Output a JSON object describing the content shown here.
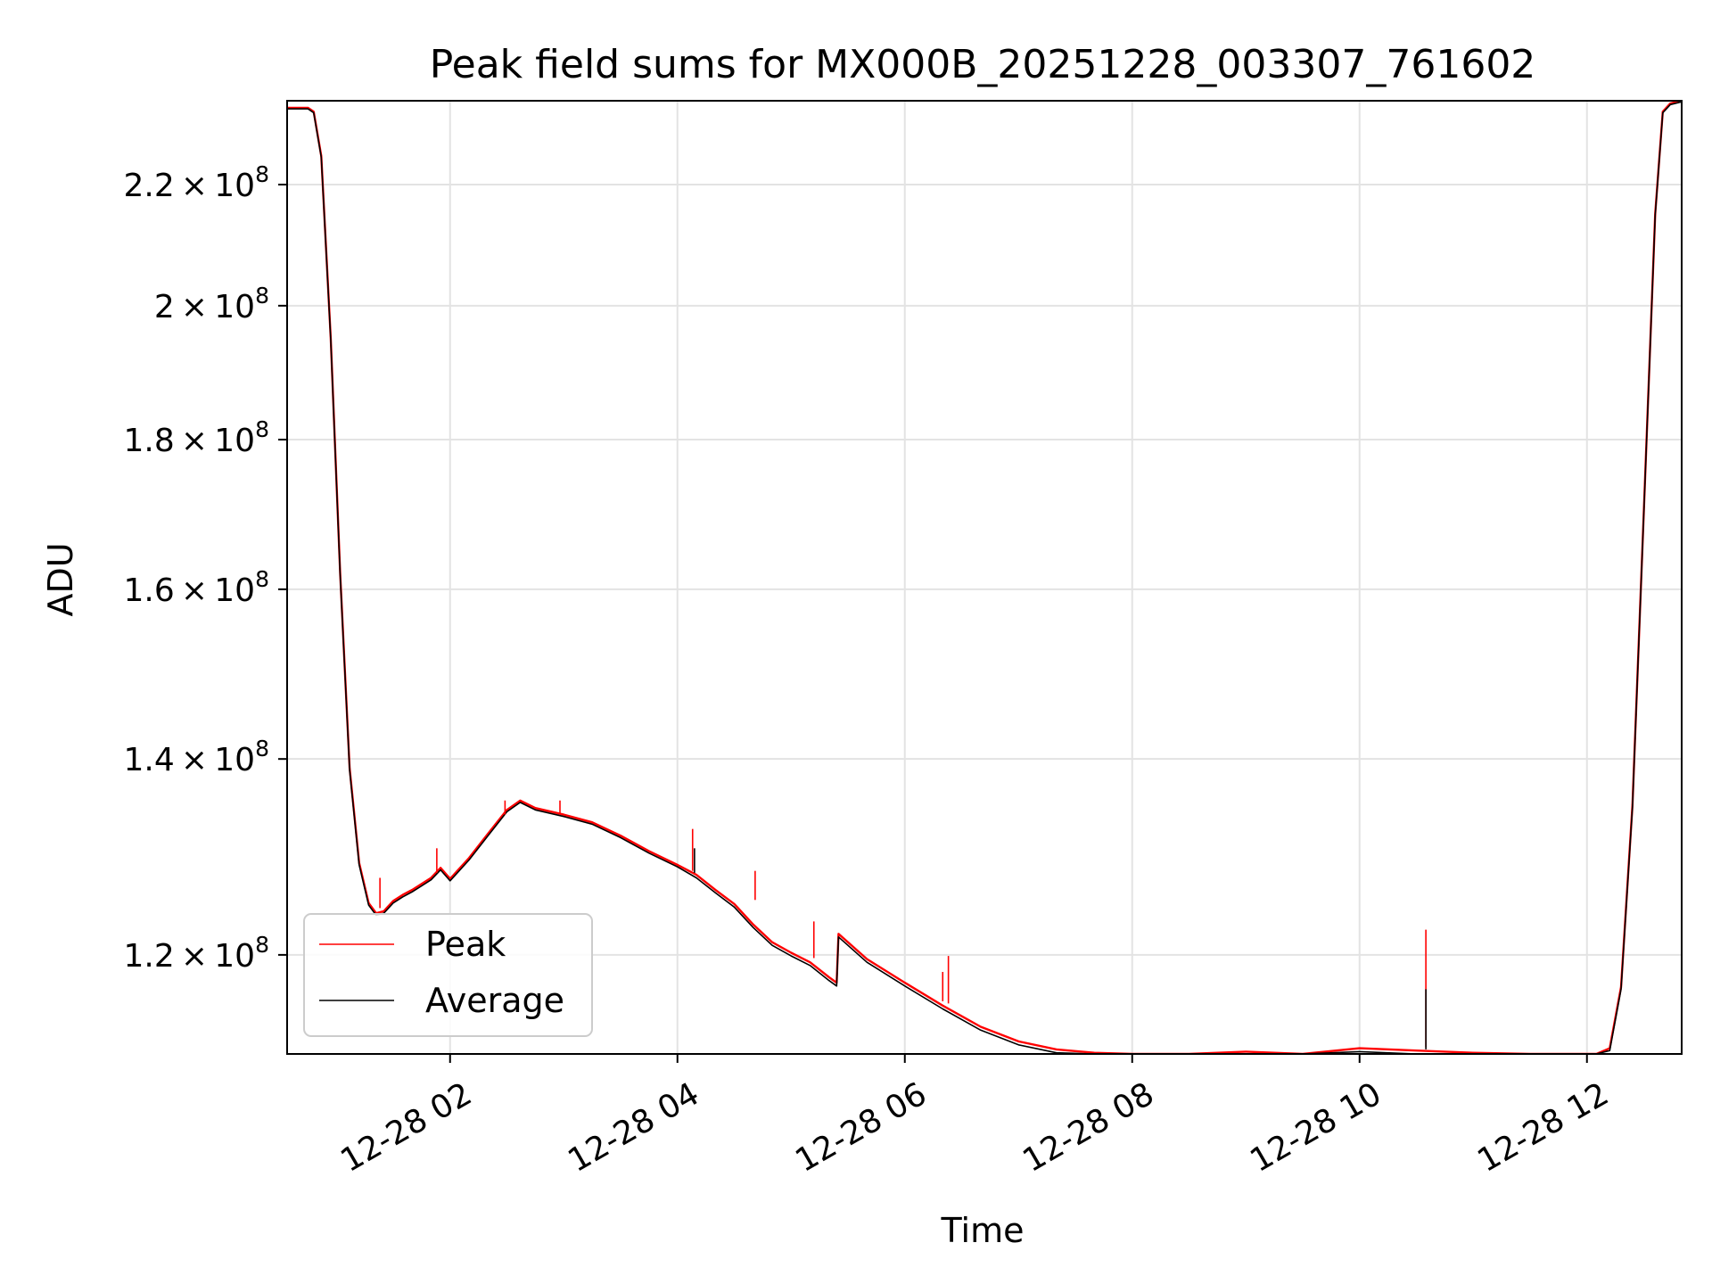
{
  "chart_data": {
    "type": "line",
    "title": "Peak field sums for MX000B_20251228_003307_761602",
    "xlabel": "Time",
    "ylabel": "ADU",
    "x_axis_type": "datetime",
    "xlim": [
      "2025-12-28 00:34",
      "2025-12-28 12:50"
    ],
    "ylim": [
      111000000,
      235000000
    ],
    "y_scale": "log",
    "grid": true,
    "legend_position": "lower-left",
    "x_ticks": [
      {
        "value": "2025-12-28 02:00",
        "label": "12-28 02"
      },
      {
        "value": "2025-12-28 04:00",
        "label": "12-28 04"
      },
      {
        "value": "2025-12-28 06:00",
        "label": "12-28 06"
      },
      {
        "value": "2025-12-28 08:00",
        "label": "12-28 08"
      },
      {
        "value": "2025-12-28 10:00",
        "label": "12-28 10"
      },
      {
        "value": "2025-12-28 12:00",
        "label": "12-28 12"
      }
    ],
    "y_ticks": [
      {
        "value": 120000000,
        "mantissa": "1.2",
        "exp": "8"
      },
      {
        "value": 140000000,
        "mantissa": "1.4",
        "exp": "8"
      },
      {
        "value": 160000000,
        "mantissa": "1.6",
        "exp": "8"
      },
      {
        "value": 180000000,
        "mantissa": "1.8",
        "exp": "8"
      },
      {
        "value": 200000000,
        "mantissa": "2",
        "exp": "8"
      },
      {
        "value": 220000000,
        "mantissa": "2.2",
        "exp": "8"
      }
    ],
    "series": [
      {
        "name": "Peak",
        "color": "#ff0000",
        "x": [
          "2025-12-28 00:34",
          "2025-12-28 00:45",
          "2025-12-28 00:48",
          "2025-12-28 00:52",
          "2025-12-28 00:57",
          "2025-12-28 01:02",
          "2025-12-28 01:07",
          "2025-12-28 01:12",
          "2025-12-28 01:17",
          "2025-12-28 01:21",
          "2025-12-28 01:25",
          "2025-12-28 01:30",
          "2025-12-28 01:35",
          "2025-12-28 01:40",
          "2025-12-28 01:45",
          "2025-12-28 01:50",
          "2025-12-28 01:55",
          "2025-12-28 02:00",
          "2025-12-28 02:10",
          "2025-12-28 02:20",
          "2025-12-28 02:30",
          "2025-12-28 02:37",
          "2025-12-28 02:45",
          "2025-12-28 03:00",
          "2025-12-28 03:15",
          "2025-12-28 03:30",
          "2025-12-28 03:45",
          "2025-12-28 04:00",
          "2025-12-28 04:10",
          "2025-12-28 04:20",
          "2025-12-28 04:30",
          "2025-12-28 04:40",
          "2025-12-28 04:50",
          "2025-12-28 05:00",
          "2025-12-28 05:10",
          "2025-12-28 05:20",
          "2025-12-28 05:24",
          "2025-12-28 05:25",
          "2025-12-28 05:40",
          "2025-12-28 06:00",
          "2025-12-28 06:20",
          "2025-12-28 06:40",
          "2025-12-28 07:00",
          "2025-12-28 07:20",
          "2025-12-28 07:40",
          "2025-12-28 08:00",
          "2025-12-28 08:30",
          "2025-12-28 09:00",
          "2025-12-28 09:30",
          "2025-12-28 10:00",
          "2025-12-28 10:30",
          "2025-12-28 11:00",
          "2025-12-28 11:30",
          "2025-12-28 11:50",
          "2025-12-28 12:00",
          "2025-12-28 12:05",
          "2025-12-28 12:12",
          "2025-12-28 12:18",
          "2025-12-28 12:24",
          "2025-12-28 12:30",
          "2025-12-28 12:36",
          "2025-12-28 12:40",
          "2025-12-28 12:44",
          "2025-12-28 12:50"
        ],
        "values": [
          233700000,
          233700000,
          233000000,
          225000000,
          195000000,
          162000000,
          139000000,
          129000000,
          125000000,
          124000000,
          124200000,
          125200000,
          125800000,
          126300000,
          126900000,
          127500000,
          128500000,
          127400000,
          129500000,
          132000000,
          134500000,
          135500000,
          134700000,
          134000000,
          133200000,
          131800000,
          130200000,
          128800000,
          127800000,
          126300000,
          124900000,
          122900000,
          121200000,
          120200000,
          119300000,
          117900000,
          117400000,
          122000000,
          119600000,
          117400000,
          115300000,
          113400000,
          112100000,
          111400000,
          111100000,
          110900000,
          110950000,
          111200000,
          110900000,
          111500000,
          111300000,
          111100000,
          110900000,
          110500000,
          110200000,
          110000000,
          111500000,
          117000000,
          135000000,
          170000000,
          215000000,
          233000000,
          234500000,
          235000000
        ]
      },
      {
        "name": "Average",
        "color": "#000000",
        "x": [
          "2025-12-28 00:34",
          "2025-12-28 00:45",
          "2025-12-28 00:48",
          "2025-12-28 00:52",
          "2025-12-28 00:57",
          "2025-12-28 01:02",
          "2025-12-28 01:07",
          "2025-12-28 01:12",
          "2025-12-28 01:17",
          "2025-12-28 01:21",
          "2025-12-28 01:25",
          "2025-12-28 01:30",
          "2025-12-28 01:35",
          "2025-12-28 01:40",
          "2025-12-28 01:45",
          "2025-12-28 01:50",
          "2025-12-28 01:55",
          "2025-12-28 02:00",
          "2025-12-28 02:10",
          "2025-12-28 02:20",
          "2025-12-28 02:30",
          "2025-12-28 02:37",
          "2025-12-28 02:45",
          "2025-12-28 03:00",
          "2025-12-28 03:15",
          "2025-12-28 03:30",
          "2025-12-28 03:45",
          "2025-12-28 04:00",
          "2025-12-28 04:10",
          "2025-12-28 04:20",
          "2025-12-28 04:30",
          "2025-12-28 04:40",
          "2025-12-28 04:50",
          "2025-12-28 05:00",
          "2025-12-28 05:10",
          "2025-12-28 05:20",
          "2025-12-28 05:24",
          "2025-12-28 05:25",
          "2025-12-28 05:40",
          "2025-12-28 06:00",
          "2025-12-28 06:20",
          "2025-12-28 06:40",
          "2025-12-28 07:00",
          "2025-12-28 07:20",
          "2025-12-28 07:40",
          "2025-12-28 08:00",
          "2025-12-28 08:30",
          "2025-12-28 09:00",
          "2025-12-28 09:30",
          "2025-12-28 10:00",
          "2025-12-28 10:30",
          "2025-12-28 11:00",
          "2025-12-28 11:30",
          "2025-12-28 11:50",
          "2025-12-28 12:00",
          "2025-12-28 12:05",
          "2025-12-28 12:12",
          "2025-12-28 12:18",
          "2025-12-28 12:24",
          "2025-12-28 12:30",
          "2025-12-28 12:36",
          "2025-12-28 12:40",
          "2025-12-28 12:44",
          "2025-12-28 12:50"
        ],
        "values": [
          233500000,
          233500000,
          232800000,
          224800000,
          194800000,
          161800000,
          138800000,
          128800000,
          124800000,
          123800000,
          124000000,
          125000000,
          125600000,
          126100000,
          126700000,
          127300000,
          128300000,
          127200000,
          129300000,
          131800000,
          134300000,
          135300000,
          134500000,
          133800000,
          133000000,
          131600000,
          130000000,
          128600000,
          127500000,
          126000000,
          124600000,
          122600000,
          120900000,
          119900000,
          119000000,
          117600000,
          117100000,
          121700000,
          119300000,
          117100000,
          115000000,
          113100000,
          111800000,
          111100000,
          110800000,
          110600000,
          110650000,
          110900000,
          110600000,
          111200000,
          111000000,
          110800000,
          110600000,
          110200000,
          109900000,
          109800000,
          111300000,
          116800000,
          134800000,
          169800000,
          214800000,
          232800000,
          234300000,
          234800000
        ]
      }
    ],
    "spikes": [
      {
        "series": "Peak",
        "x": "2025-12-28 01:23",
        "base": 124500000,
        "top": 127500000
      },
      {
        "series": "Peak",
        "x": "2025-12-28 01:53",
        "base": 128000000,
        "top": 130500000
      },
      {
        "series": "Peak",
        "x": "2025-12-28 02:29",
        "base": 134000000,
        "top": 135500000
      },
      {
        "series": "Peak",
        "x": "2025-12-28 02:58",
        "base": 134000000,
        "top": 135500000
      },
      {
        "series": "Peak",
        "x": "2025-12-28 04:08",
        "base": 128200000,
        "top": 132500000
      },
      {
        "series": "Average",
        "x": "2025-12-28 04:09",
        "base": 128000000,
        "top": 130500000
      },
      {
        "series": "Peak",
        "x": "2025-12-28 04:41",
        "base": 125300000,
        "top": 128200000
      },
      {
        "series": "Peak",
        "x": "2025-12-28 05:12",
        "base": 119700000,
        "top": 123200000
      },
      {
        "series": "Peak",
        "x": "2025-12-28 06:20",
        "base": 115700000,
        "top": 118400000
      },
      {
        "series": "Peak",
        "x": "2025-12-28 06:23",
        "base": 115500000,
        "top": 119900000
      },
      {
        "series": "Peak",
        "x": "2025-12-28 10:35",
        "base": 111600000,
        "top": 122400000
      },
      {
        "series": "Average",
        "x": "2025-12-28 10:35",
        "base": 111400000,
        "top": 116800000
      }
    ]
  },
  "legend": {
    "peak_label": "Peak",
    "average_label": "Average"
  }
}
